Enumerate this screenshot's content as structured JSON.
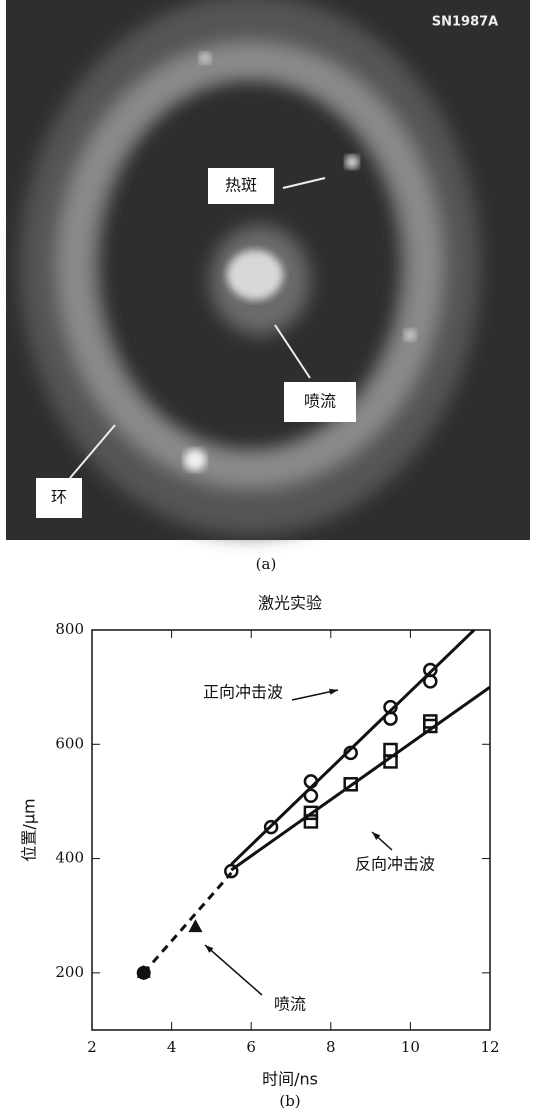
{
  "image": {
    "name": "SN1987A",
    "labels": {
      "hotspot": "热斑",
      "jet": "喷流",
      "ring": "环"
    },
    "caption": "(a)"
  },
  "chart_data": {
    "type": "scatter",
    "title": "激光实验",
    "caption": "(b)",
    "xlabel": "时间/ns",
    "ylabel": "位置/μm",
    "xlim": [
      2,
      12
    ],
    "xticks": [
      2,
      4,
      6,
      8,
      10,
      12
    ],
    "ylim": [
      100,
      800
    ],
    "yticks": [
      200,
      400,
      600,
      800
    ],
    "series": [
      {
        "name": "正向冲击波",
        "color": "#111111",
        "marker": "circle",
        "line_style": "solid",
        "x": [
          5.5,
          6.5,
          7.5,
          7.5,
          8.5,
          9.5,
          9.5,
          10.5,
          10.5
        ],
        "values": [
          378,
          455,
          535,
          510,
          585,
          665,
          645,
          730,
          710
        ],
        "line_x": [
          5.5,
          11.6
        ],
        "line_values": [
          390,
          800
        ]
      },
      {
        "name": "反向冲击波",
        "color": "#111111",
        "marker": "square",
        "line_style": "solid",
        "x": [
          7.5,
          7.5,
          8.5,
          9.5,
          9.5,
          10.5,
          10.5
        ],
        "values": [
          465,
          480,
          530,
          590,
          570,
          640,
          632
        ],
        "line_x": [
          5.5,
          12
        ],
        "line_values": [
          380,
          700
        ]
      },
      {
        "name": "喷流",
        "color": "#111111",
        "marker": "triangle",
        "line_style": "dashed",
        "x": [
          3.3,
          4.6
        ],
        "values": [
          200,
          280
        ],
        "line_x": [
          3.3,
          5.5
        ],
        "line_values": [
          200,
          375
        ]
      }
    ]
  }
}
